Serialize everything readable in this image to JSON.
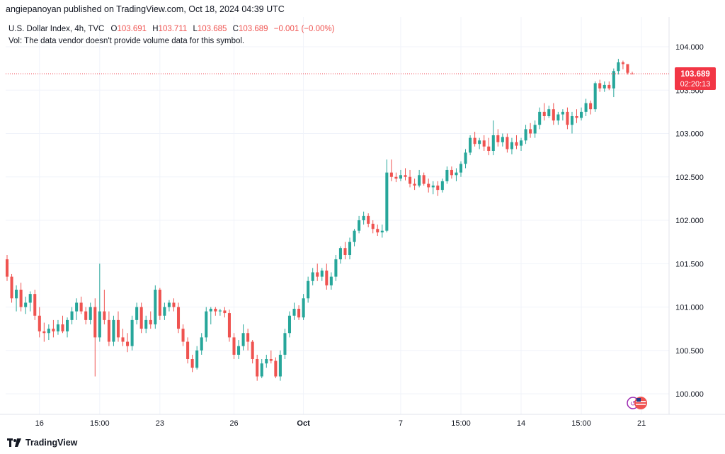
{
  "header": {
    "published_by": "angiepanoyan published on TradingView.com, Oct 18, 2024 04:39 UTC"
  },
  "legend": {
    "symbol": "U.S. Dollar Index, 4h, TVC",
    "open_label": "O",
    "open": "103.691",
    "high_label": "H",
    "high": "103.711",
    "low_label": "L",
    "low": "103.685",
    "close_label": "C",
    "close": "103.689",
    "change": "−0.001 (−0.00%)",
    "vol_note": "Vol: The data vendor doesn't provide volume data for this symbol."
  },
  "price_tag": {
    "price": "103.689",
    "countdown": "02:20:13"
  },
  "footer": {
    "brand": "TradingView"
  },
  "colors": {
    "up": "#26a69a",
    "down": "#ef5350",
    "grid": "#f0f3fa",
    "text": "#131722",
    "accent": "#f23645"
  },
  "icons": {
    "brand_logo": "tradingview-logo-icon",
    "flag": "us-flag-icon"
  },
  "chart_data": {
    "type": "candlestick",
    "ylim": [
      99.85,
      104.3
    ],
    "y_ticks": [
      "104.000",
      "103.500",
      "103.000",
      "102.500",
      "102.000",
      "101.500",
      "101.000",
      "100.500",
      "100.000"
    ],
    "x_ticks": [
      {
        "label": "16",
        "i": 7
      },
      {
        "label": "15:00",
        "i": 20
      },
      {
        "label": "23",
        "i": 33
      },
      {
        "label": "26",
        "i": 49
      },
      {
        "label": "Oct",
        "i": 64,
        "bold": true
      },
      {
        "label": "7",
        "i": 85
      },
      {
        "label": "15:00",
        "i": 98
      },
      {
        "label": "14",
        "i": 111
      },
      {
        "label": "15:00",
        "i": 124
      },
      {
        "label": "21",
        "i": 137
      }
    ],
    "last_price": 103.689,
    "candles": [
      [
        101.55,
        101.6,
        101.3,
        101.35
      ],
      [
        101.35,
        101.38,
        101.05,
        101.1
      ],
      [
        101.1,
        101.25,
        100.95,
        101.2
      ],
      [
        101.2,
        101.28,
        100.95,
        101.0
      ],
      [
        101.0,
        101.12,
        100.92,
        101.05
      ],
      [
        101.05,
        101.18,
        100.95,
        101.15
      ],
      [
        101.15,
        101.2,
        100.85,
        100.9
      ],
      [
        100.9,
        101.0,
        100.65,
        100.72
      ],
      [
        100.72,
        100.82,
        100.6,
        100.7
      ],
      [
        100.7,
        100.8,
        100.62,
        100.75
      ],
      [
        100.75,
        100.85,
        100.65,
        100.72
      ],
      [
        100.72,
        100.85,
        100.68,
        100.8
      ],
      [
        100.8,
        100.9,
        100.7,
        100.72
      ],
      [
        100.72,
        100.88,
        100.65,
        100.85
      ],
      [
        100.85,
        101.0,
        100.8,
        100.95
      ],
      [
        100.95,
        101.1,
        100.85,
        101.05
      ],
      [
        101.05,
        101.12,
        100.92,
        100.95
      ],
      [
        100.95,
        101.0,
        100.8,
        100.85
      ],
      [
        100.85,
        101.05,
        100.8,
        101.0
      ],
      [
        101.0,
        101.1,
        100.2,
        100.65
      ],
      [
        100.65,
        101.5,
        100.6,
        100.95
      ],
      [
        100.95,
        101.2,
        100.8,
        100.85
      ],
      [
        100.85,
        100.95,
        100.55,
        100.6
      ],
      [
        100.6,
        100.9,
        100.55,
        100.85
      ],
      [
        100.85,
        100.95,
        100.6,
        100.65
      ],
      [
        100.65,
        100.75,
        100.55,
        100.6
      ],
      [
        100.6,
        100.7,
        100.48,
        100.55
      ],
      [
        100.55,
        100.9,
        100.5,
        100.85
      ],
      [
        100.85,
        101.05,
        100.8,
        101.0
      ],
      [
        101.0,
        101.05,
        100.7,
        100.75
      ],
      [
        100.75,
        100.9,
        100.7,
        100.85
      ],
      [
        100.85,
        100.95,
        100.75,
        100.8
      ],
      [
        100.8,
        101.25,
        100.75,
        101.2
      ],
      [
        101.2,
        101.22,
        100.85,
        100.9
      ],
      [
        100.9,
        101.05,
        100.85,
        101.0
      ],
      [
        101.0,
        101.08,
        100.95,
        101.05
      ],
      [
        101.05,
        101.1,
        100.95,
        101.0
      ],
      [
        101.0,
        101.05,
        100.7,
        100.75
      ],
      [
        100.75,
        100.8,
        100.55,
        100.6
      ],
      [
        100.6,
        100.65,
        100.35,
        100.4
      ],
      [
        100.4,
        100.45,
        100.25,
        100.3
      ],
      [
        100.3,
        100.55,
        100.28,
        100.5
      ],
      [
        100.5,
        100.7,
        100.45,
        100.65
      ],
      [
        100.65,
        101.0,
        100.6,
        100.95
      ],
      [
        100.95,
        101.0,
        100.8,
        100.98
      ],
      [
        100.98,
        101.0,
        100.9,
        100.95
      ],
      [
        100.95,
        100.98,
        100.9,
        100.96
      ],
      [
        100.96,
        101.0,
        100.88,
        100.93
      ],
      [
        100.93,
        100.97,
        100.6,
        100.65
      ],
      [
        100.65,
        100.7,
        100.4,
        100.45
      ],
      [
        100.45,
        100.62,
        100.4,
        100.55
      ],
      [
        100.55,
        100.8,
        100.5,
        100.7
      ],
      [
        100.7,
        100.75,
        100.5,
        100.6
      ],
      [
        100.6,
        100.62,
        100.35,
        100.4
      ],
      [
        100.4,
        100.45,
        100.15,
        100.2
      ],
      [
        100.2,
        100.4,
        100.18,
        100.35
      ],
      [
        100.35,
        100.45,
        100.3,
        100.4
      ],
      [
        100.4,
        100.5,
        100.35,
        100.38
      ],
      [
        100.38,
        100.42,
        100.18,
        100.2
      ],
      [
        100.2,
        100.5,
        100.15,
        100.45
      ],
      [
        100.45,
        100.75,
        100.4,
        100.7
      ],
      [
        100.7,
        100.95,
        100.65,
        100.9
      ],
      [
        100.9,
        101.05,
        100.85,
        100.98
      ],
      [
        100.98,
        101.02,
        100.85,
        100.88
      ],
      [
        100.88,
        101.15,
        100.85,
        101.1
      ],
      [
        101.1,
        101.35,
        101.05,
        101.3
      ],
      [
        101.3,
        101.45,
        101.25,
        101.4
      ],
      [
        101.4,
        101.5,
        101.3,
        101.35
      ],
      [
        101.35,
        101.45,
        101.3,
        101.42
      ],
      [
        101.42,
        101.5,
        101.2,
        101.25
      ],
      [
        101.25,
        101.4,
        101.2,
        101.35
      ],
      [
        101.35,
        101.6,
        101.3,
        101.55
      ],
      [
        101.55,
        101.7,
        101.5,
        101.68
      ],
      [
        101.68,
        101.75,
        101.55,
        101.6
      ],
      [
        101.6,
        101.8,
        101.55,
        101.75
      ],
      [
        101.75,
        101.9,
        101.7,
        101.88
      ],
      [
        101.88,
        102.05,
        101.85,
        102.0
      ],
      [
        102.0,
        102.1,
        101.95,
        102.05
      ],
      [
        102.05,
        102.08,
        101.92,
        101.96
      ],
      [
        101.96,
        102.0,
        101.85,
        101.9
      ],
      [
        101.9,
        101.95,
        101.82,
        101.86
      ],
      [
        101.86,
        101.95,
        101.8,
        101.88
      ],
      [
        101.88,
        102.7,
        101.86,
        102.55
      ],
      [
        102.55,
        102.7,
        102.45,
        102.5
      ],
      [
        102.5,
        102.55,
        102.44,
        102.48
      ],
      [
        102.48,
        102.58,
        102.45,
        102.52
      ],
      [
        102.52,
        102.6,
        102.46,
        102.5
      ],
      [
        102.5,
        102.58,
        102.38,
        102.42
      ],
      [
        102.42,
        102.48,
        102.35,
        102.4
      ],
      [
        102.4,
        102.58,
        102.38,
        102.52
      ],
      [
        102.52,
        102.55,
        102.4,
        102.42
      ],
      [
        102.42,
        102.48,
        102.32,
        102.38
      ],
      [
        102.38,
        102.45,
        102.3,
        102.4
      ],
      [
        102.4,
        102.45,
        102.28,
        102.35
      ],
      [
        102.35,
        102.48,
        102.32,
        102.45
      ],
      [
        102.45,
        102.62,
        102.42,
        102.58
      ],
      [
        102.58,
        102.62,
        102.48,
        102.52
      ],
      [
        102.52,
        102.6,
        102.45,
        102.55
      ],
      [
        102.55,
        102.68,
        102.5,
        102.65
      ],
      [
        102.65,
        102.82,
        102.6,
        102.78
      ],
      [
        102.78,
        102.98,
        102.75,
        102.95
      ],
      [
        102.95,
        103.02,
        102.85,
        102.88
      ],
      [
        102.88,
        102.95,
        102.82,
        102.92
      ],
      [
        102.92,
        102.98,
        102.8,
        102.85
      ],
      [
        102.85,
        102.95,
        102.75,
        102.8
      ],
      [
        102.8,
        103.15,
        102.75,
        102.98
      ],
      [
        102.98,
        103.05,
        102.85,
        102.9
      ],
      [
        102.9,
        103.0,
        102.85,
        102.96
      ],
      [
        102.96,
        103.0,
        102.78,
        102.82
      ],
      [
        102.82,
        102.95,
        102.76,
        102.9
      ],
      [
        102.9,
        102.98,
        102.82,
        102.86
      ],
      [
        102.86,
        102.95,
        102.8,
        102.92
      ],
      [
        102.92,
        103.1,
        102.88,
        103.05
      ],
      [
        103.05,
        103.12,
        102.95,
        103.0
      ],
      [
        103.0,
        103.15,
        102.95,
        103.1
      ],
      [
        103.1,
        103.3,
        103.05,
        103.25
      ],
      [
        103.25,
        103.35,
        103.15,
        103.2
      ],
      [
        103.2,
        103.32,
        103.18,
        103.28
      ],
      [
        103.28,
        103.35,
        103.1,
        103.15
      ],
      [
        103.15,
        103.25,
        103.1,
        103.22
      ],
      [
        103.22,
        103.28,
        103.15,
        103.25
      ],
      [
        103.25,
        103.3,
        103.05,
        103.1
      ],
      [
        103.1,
        103.25,
        103.0,
        103.2
      ],
      [
        103.2,
        103.28,
        103.12,
        103.18
      ],
      [
        103.18,
        103.3,
        103.15,
        103.25
      ],
      [
        103.25,
        103.4,
        103.2,
        103.35
      ],
      [
        103.35,
        103.38,
        103.22,
        103.28
      ],
      [
        103.28,
        103.6,
        103.25,
        103.58
      ],
      [
        103.58,
        103.62,
        103.48,
        103.52
      ],
      [
        103.52,
        103.6,
        103.48,
        103.56
      ],
      [
        103.56,
        103.6,
        103.5,
        103.52
      ],
      [
        103.52,
        103.75,
        103.42,
        103.72
      ],
      [
        103.72,
        103.86,
        103.68,
        103.82
      ],
      [
        103.82,
        103.84,
        103.74,
        103.8
      ],
      [
        103.8,
        103.8,
        103.68,
        103.7
      ],
      [
        103.691,
        103.711,
        103.685,
        103.689
      ]
    ]
  }
}
